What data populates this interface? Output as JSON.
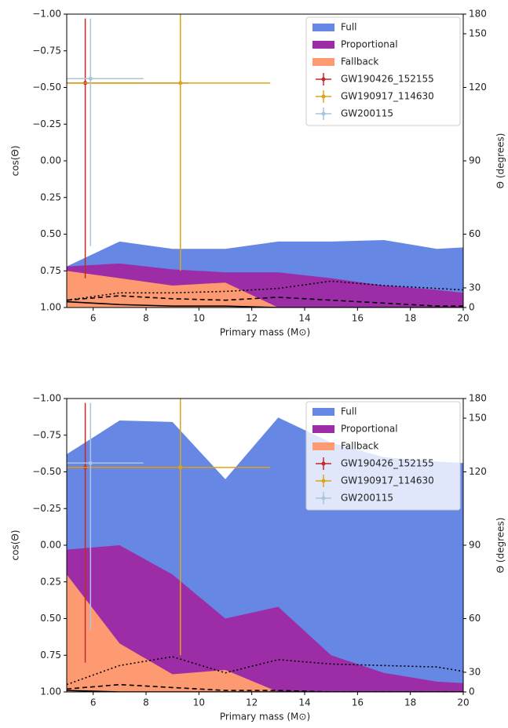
{
  "chart_data": [
    {
      "type": "area",
      "xlabel": "Primary mass (M⊙)",
      "ylabel": "cos(Θ)",
      "y2label": "Θ (degrees)",
      "x": [
        5,
        7,
        9,
        11,
        13,
        15,
        17,
        19,
        20
      ],
      "xlim": [
        5,
        20
      ],
      "xticks": [
        6,
        8,
        10,
        12,
        14,
        16,
        18,
        20
      ],
      "ylim": [
        -1,
        1
      ],
      "yinverted": true,
      "yticks": [
        {
          "value": -1,
          "label": "−1.00"
        },
        {
          "value": -0.75,
          "label": "−0.75"
        },
        {
          "value": -0.5,
          "label": "−0.50"
        },
        {
          "value": -0.25,
          "label": "−0.25"
        },
        {
          "value": 0,
          "label": "0.00"
        },
        {
          "value": 0.25,
          "label": "0.25"
        },
        {
          "value": 0.5,
          "label": "0.50"
        },
        {
          "value": 0.75,
          "label": "0.75"
        },
        {
          "value": 1,
          "label": "1.00"
        }
      ],
      "y2scale": "cosine-degrees",
      "y2ticks": [
        0,
        30,
        60,
        90,
        120,
        150,
        180
      ],
      "legend": "upper right",
      "series": [
        {
          "name": "Full",
          "color": "#6687e4",
          "values": [
            0.72,
            0.55,
            0.6,
            0.6,
            0.55,
            0.55,
            0.54,
            0.6,
            0.59
          ]
        },
        {
          "name": "Proportional",
          "color": "#9c2da6",
          "values": [
            0.72,
            0.7,
            0.74,
            0.76,
            0.76,
            0.8,
            0.85,
            0.88,
            0.9
          ]
        },
        {
          "name": "Fallback",
          "color": "#fe9a72",
          "values": [
            0.75,
            0.8,
            0.85,
            0.83,
            1,
            1,
            1,
            1,
            1
          ]
        }
      ],
      "lines": [
        {
          "style": "dotted",
          "color": "#000000",
          "values": [
            0.95,
            0.9,
            0.9,
            0.89,
            0.87,
            0.82,
            0.85,
            0.87,
            0.88
          ]
        },
        {
          "style": "dashed",
          "color": "#000000",
          "values": [
            0.95,
            0.92,
            0.94,
            0.95,
            0.93,
            0.95,
            0.97,
            0.99,
            0.99
          ]
        },
        {
          "style": "solid",
          "color": "#000000",
          "values": [
            0.96,
            0.98,
            0.99,
            0.99,
            1,
            1,
            1,
            1,
            1
          ]
        }
      ],
      "points": [
        {
          "name": "GW190426_152155",
          "color": "#c62828",
          "x": 5.7,
          "y": -0.53,
          "xerr": [
            0.9,
            3.9
          ],
          "yerr": [
            0.44,
            1.33
          ]
        },
        {
          "name": "GW190917_114630",
          "color": "#dea416",
          "x": 9.3,
          "y": -0.53,
          "xerr": [
            4.5,
            3.4
          ],
          "yerr": [
            0.5,
            1.28
          ]
        },
        {
          "name": "GW200115",
          "color": "#a9c4de",
          "x": 5.9,
          "y": -0.56,
          "xerr": [
            1.1,
            2.0
          ],
          "yerr": [
            0.41,
            1.14
          ]
        }
      ]
    },
    {
      "type": "area",
      "xlabel": "Primary mass (M⊙)",
      "ylabel": "cos(Θ)",
      "y2label": "Θ (degrees)",
      "x": [
        5,
        7,
        9,
        11,
        13,
        15,
        17,
        19,
        20
      ],
      "xlim": [
        5,
        20
      ],
      "xticks": [
        6,
        8,
        10,
        12,
        14,
        16,
        18,
        20
      ],
      "ylim": [
        -1,
        1
      ],
      "yinverted": true,
      "yticks": [
        {
          "value": -1,
          "label": "−1.00"
        },
        {
          "value": -0.75,
          "label": "−0.75"
        },
        {
          "value": -0.5,
          "label": "−0.50"
        },
        {
          "value": -0.25,
          "label": "−0.25"
        },
        {
          "value": 0,
          "label": "0.00"
        },
        {
          "value": 0.25,
          "label": "0.25"
        },
        {
          "value": 0.5,
          "label": "0.50"
        },
        {
          "value": 0.75,
          "label": "0.75"
        },
        {
          "value": 1,
          "label": "1.00"
        }
      ],
      "y2scale": "cosine-degrees",
      "y2ticks": [
        0,
        30,
        60,
        90,
        120,
        150,
        180
      ],
      "legend": "upper right",
      "series": [
        {
          "name": "Full",
          "color": "#6687e4",
          "values": [
            -0.62,
            -0.85,
            -0.84,
            -0.45,
            -0.87,
            -0.7,
            -0.6,
            -0.57,
            -0.56
          ]
        },
        {
          "name": "Proportional",
          "color": "#9c2da6",
          "values": [
            0.03,
            0,
            0.2,
            0.5,
            0.42,
            0.75,
            0.87,
            0.93,
            0.94
          ]
        },
        {
          "name": "Fallback",
          "color": "#fe9a72",
          "values": [
            0.2,
            0.67,
            0.88,
            0.85,
            1,
            1,
            1,
            1,
            1
          ]
        }
      ],
      "lines": [
        {
          "style": "dotted",
          "color": "#000000",
          "values": [
            0.95,
            0.82,
            0.76,
            0.87,
            0.78,
            0.81,
            0.82,
            0.83,
            0.86
          ]
        },
        {
          "style": "dashed",
          "color": "#000000",
          "values": [
            0.98,
            0.95,
            0.97,
            0.99,
            0.99,
            1,
            1,
            1,
            1
          ]
        },
        {
          "style": "solid",
          "color": "#000000",
          "values": [
            0.99,
            1,
            1,
            1,
            1,
            1,
            1,
            1,
            1
          ]
        }
      ],
      "points": [
        {
          "name": "GW190426_152155",
          "color": "#c62828",
          "x": 5.7,
          "y": -0.53,
          "xerr": [
            0.9,
            3.9
          ],
          "yerr": [
            0.44,
            1.33
          ]
        },
        {
          "name": "GW190917_114630",
          "color": "#dea416",
          "x": 9.3,
          "y": -0.53,
          "xerr": [
            4.5,
            3.4
          ],
          "yerr": [
            0.5,
            1.28
          ]
        },
        {
          "name": "GW200115",
          "color": "#a9c4de",
          "x": 5.9,
          "y": -0.56,
          "xerr": [
            1.1,
            2.0
          ],
          "yerr": [
            0.41,
            1.14
          ]
        }
      ]
    }
  ]
}
